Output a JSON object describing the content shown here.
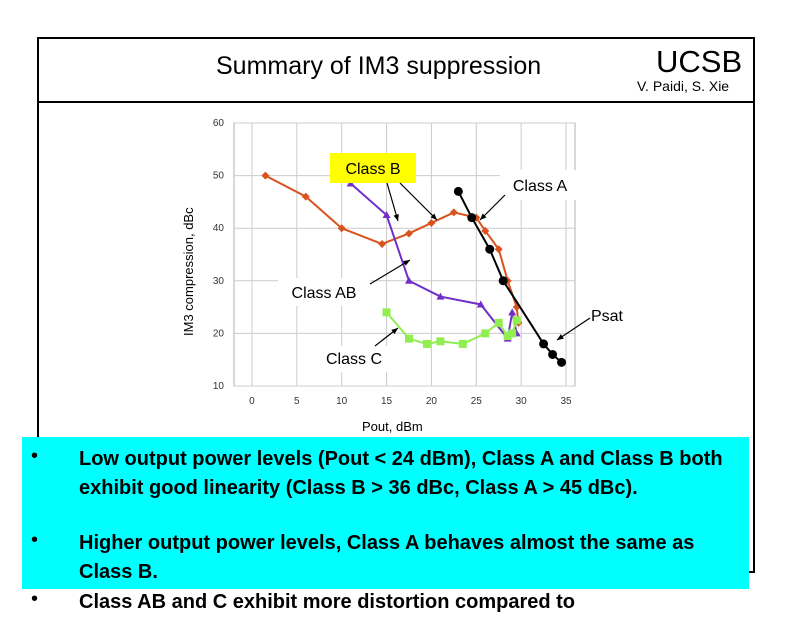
{
  "header": {
    "title": "Summary of IM3 suppression",
    "brand": "UCSB",
    "authors": "V. Paidi, S. Xie"
  },
  "chart_data": {
    "type": "line",
    "xlabel": "Pout, dBm",
    "ylabel": "IM3 compression, dBc",
    "xlim": [
      -2,
      36
    ],
    "ylim": [
      10,
      60
    ],
    "xticks": [
      0,
      5,
      10,
      15,
      20,
      25,
      30,
      35
    ],
    "yticks": [
      10,
      20,
      30,
      40,
      50,
      60
    ],
    "grid": true,
    "series": [
      {
        "name": "Class B",
        "color": "#d9531e",
        "marker": "diamond",
        "x": [
          1.5,
          6,
          10,
          14.5,
          17.5,
          20,
          22.5,
          25,
          26,
          27.5,
          28.5,
          29.5,
          29.7
        ],
        "y": [
          50,
          46,
          40,
          37,
          39,
          41,
          43,
          42,
          39.5,
          36,
          30,
          25,
          22
        ]
      },
      {
        "name": "Class AB",
        "color": "#7030c8",
        "marker": "triangle",
        "x": [
          11,
          15,
          17.5,
          21,
          25.5,
          28.5,
          29,
          29.5
        ],
        "y": [
          48.5,
          42.5,
          30,
          27,
          25.5,
          19,
          24,
          20
        ]
      },
      {
        "name": "Class A",
        "color": "#000000",
        "marker": "circle",
        "x": [
          23,
          24.5,
          26.5,
          28,
          32.5,
          33.5,
          34.5
        ],
        "y": [
          47,
          42,
          36,
          30,
          18,
          16,
          14.5
        ]
      },
      {
        "name": "Class C",
        "color": "#90ee50",
        "marker": "square",
        "x": [
          15,
          17.5,
          19.5,
          21,
          23.5,
          26,
          27.5,
          28.5,
          29,
          29.5
        ],
        "y": [
          24,
          19,
          18,
          18.5,
          18,
          20,
          22,
          19.5,
          20,
          22.5
        ]
      }
    ],
    "annotations": [
      {
        "text": "Class B"
      },
      {
        "text": "Class A"
      },
      {
        "text": "Class AB"
      },
      {
        "text": "Psat"
      },
      {
        "text": "Class C"
      }
    ]
  },
  "bullets": [
    {
      "marker": "•",
      "text": "Low output power levels (Pout < 24 dBm), Class A and Class B both exhibit good linearity (Class B > 36 dBc, Class A > 45 dBc)."
    },
    {
      "marker": "•",
      "text": "Higher output power levels, Class A behaves almost the same as Class B."
    },
    {
      "marker": "•",
      "text": "Class AB and C exhibit more distortion compared to"
    }
  ]
}
